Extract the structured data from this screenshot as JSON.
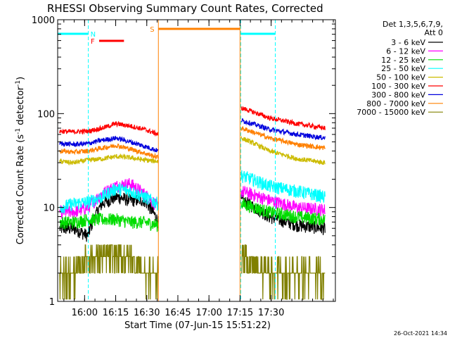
{
  "chart_data": {
    "type": "line",
    "title": "RHESSI Observing Summary Count Rates, Corrected",
    "xlabel": "Start Time (07-Jun-15 15:51:22)",
    "ylabel": "Corrected Count Rate (s⁻¹ detector⁻¹)",
    "ylabel_parts": [
      "Corrected Count Rate (s",
      "-1",
      " detector",
      "-1",
      ")"
    ],
    "footer_date": "26-Oct-2021 14:34",
    "x_range_min": [
      -4,
      130
    ],
    "x_ticks": [
      {
        "min": 9,
        "label": "16:00"
      },
      {
        "min": 24,
        "label": "16:15"
      },
      {
        "min": 39,
        "label": "16:30"
      },
      {
        "min": 54,
        "label": "16:45"
      },
      {
        "min": 69,
        "label": "17:00"
      },
      {
        "min": 84,
        "label": "17:15"
      },
      {
        "min": 99,
        "label": "17:30"
      }
    ],
    "x_minor_step_min": 5,
    "y_scale": "log",
    "ylim": [
      1,
      1000
    ],
    "y_ticks": [
      {
        "value": 1,
        "label": "1"
      },
      {
        "value": 10,
        "label": "10"
      },
      {
        "value": 100,
        "label": "100"
      },
      {
        "value": 1000,
        "label": "1000"
      }
    ],
    "legend_header": [
      "Det 1,3,5,6,7,9,",
      "Att 0"
    ],
    "legend_position": "right",
    "gaps_min": [
      [
        44.6,
        84.3
      ]
    ],
    "series": [
      {
        "name": "3 - 6 keV",
        "color": "#000000",
        "before": [
          6,
          6,
          5,
          11,
          13,
          12,
          12,
          7
        ],
        "after": [
          12,
          8,
          6.5,
          6
        ]
      },
      {
        "name": "6 - 12 keV",
        "color": "#ff00ff",
        "before": [
          9,
          9,
          10,
          14,
          17,
          18,
          14,
          10
        ],
        "after": [
          15,
          12,
          10,
          9.5
        ]
      },
      {
        "name": "12 - 25 keV",
        "color": "#00dd00",
        "before": [
          7,
          7,
          7.5,
          7.5,
          7.5,
          7,
          7,
          6.5
        ],
        "after": [
          11,
          9,
          8,
          7.5
        ]
      },
      {
        "name": "25 - 50 keV",
        "color": "#00ffff",
        "before": [
          10,
          11,
          11.5,
          13,
          16,
          15,
          13,
          11
        ],
        "after": [
          22,
          17,
          15,
          13
        ]
      },
      {
        "name": "50 - 100 keV",
        "color": "#ccbb00",
        "before": [
          31,
          30,
          32,
          33,
          35,
          34,
          32,
          31
        ],
        "after": [
          55,
          40,
          33,
          30
        ]
      },
      {
        "name": "100 - 300 keV",
        "color": "#ff0000",
        "before": [
          65,
          64,
          65,
          70,
          78,
          74,
          68,
          60
        ],
        "after": [
          115,
          90,
          78,
          70
        ]
      },
      {
        "name": "300 - 800 keV",
        "color": "#0000dd",
        "before": [
          48,
          47,
          48,
          52,
          55,
          50,
          45,
          40
        ],
        "after": [
          85,
          68,
          60,
          55
        ]
      },
      {
        "name": "800 - 7000 keV",
        "color": "#ff8000",
        "before": [
          40,
          39,
          40,
          43,
          46,
          42,
          38,
          34
        ],
        "after": [
          70,
          55,
          47,
          43
        ]
      },
      {
        "name": "7000 - 15000 keV",
        "color": "#808000",
        "before": [
          2,
          2,
          3,
          3,
          3,
          3,
          2,
          2
        ],
        "after": [
          3,
          2,
          2,
          2
        ]
      }
    ],
    "annotations": [
      {
        "label": "N",
        "color": "#00ffff",
        "segments": [
          [
            -4,
            10.8
          ],
          [
            84.3,
            101
          ]
        ]
      },
      {
        "label": "F",
        "color": "#ff0000",
        "segments": [
          [
            16,
            28
          ]
        ]
      },
      {
        "label": "S",
        "color": "#ff8000",
        "segments": [
          [
            44.6,
            84
          ]
        ]
      }
    ]
  }
}
